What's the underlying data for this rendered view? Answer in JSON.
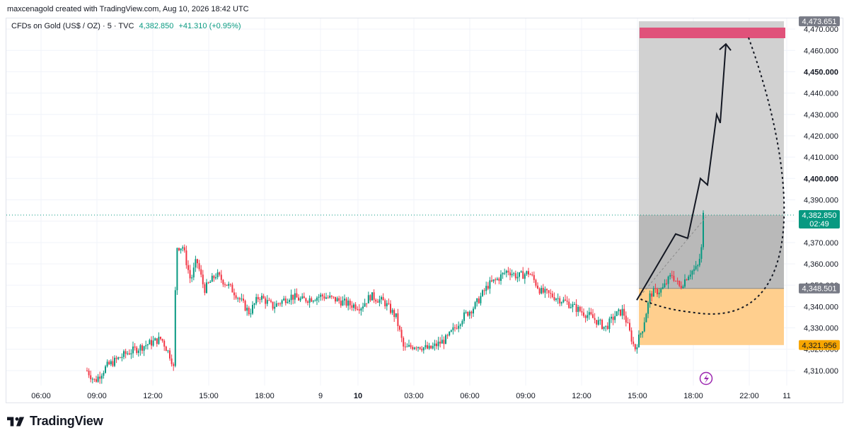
{
  "credit": "maxcenagold created with TradingView.com, Aug 10, 2026 18:42 UTC",
  "legend": {
    "symbol": "CFDs on Gold (US$ / OZ) · 5 · TVC",
    "last": "4,382.850",
    "change": "+41.310 (+0.95%)"
  },
  "branding": {
    "name": "TradingView"
  },
  "colors": {
    "up": "#089981",
    "down": "#f23645",
    "target": "#e0527a",
    "profit_zone": "#d1d1d1",
    "stop_zone": "#ffcf8e",
    "tag_gray": "#787b86",
    "tag_orange": "#f7a600",
    "tag_green": "#089981"
  },
  "chart_data": {
    "type": "candlestick",
    "symbol": "CFDs on Gold (US$ / OZ)",
    "timeframe": "5",
    "x_ticks": [
      "06:00",
      "09:00",
      "12:00",
      "15:00",
      "18:00",
      "9",
      "10",
      "03:00",
      "06:00",
      "09:00",
      "12:00",
      "15:00",
      "18:00",
      "22:00",
      "11"
    ],
    "bold_x_ticks": [
      "10"
    ],
    "y_ticks": [
      4310,
      4320,
      4330,
      4340,
      4350,
      4360,
      4370,
      4380,
      4390,
      4400,
      4410,
      4420,
      4430,
      4440,
      4450,
      4460,
      4470
    ],
    "y_tick_labels": [
      "4,310.000",
      "4,320.000",
      "4,330.000",
      "4,340.000",
      "4,350.000",
      "4,360.000",
      "4,370.000",
      "4,380.000",
      "4,390.000",
      "4,400.000",
      "4,410.000",
      "4,420.000",
      "4,430.000",
      "4,440.000",
      "4,450.000",
      "4,460.000",
      "4,470.000"
    ],
    "bold_y_ticks": [
      "4,400.000",
      "4,450.000"
    ],
    "ylim": [
      4303,
      4475
    ],
    "price_path": [
      [
        0.0,
        4310
      ],
      [
        0.4,
        4305
      ],
      [
        1.0,
        4312
      ],
      [
        2.0,
        4318
      ],
      [
        3.0,
        4322
      ],
      [
        3.8,
        4325
      ],
      [
        4.3,
        4316
      ],
      [
        4.45,
        4310
      ],
      [
        4.55,
        4368
      ],
      [
        4.9,
        4368
      ],
      [
        5.3,
        4352
      ],
      [
        5.6,
        4362
      ],
      [
        6.0,
        4348
      ],
      [
        6.6,
        4355
      ],
      [
        7.2,
        4350
      ],
      [
        7.6,
        4346
      ],
      [
        8.3,
        4337
      ],
      [
        8.8,
        4345
      ],
      [
        9.5,
        4340
      ],
      [
        10.4,
        4345
      ],
      [
        11.0,
        4343
      ],
      [
        12.0,
        4345
      ],
      [
        12.8,
        4343
      ],
      [
        13.4,
        4341
      ],
      [
        14.0,
        4340
      ],
      [
        14.5,
        4345
      ],
      [
        15.2,
        4342
      ],
      [
        15.8,
        4335
      ],
      [
        16.2,
        4320
      ],
      [
        16.8,
        4322
      ],
      [
        17.5,
        4320
      ],
      [
        18.4,
        4325
      ],
      [
        19.2,
        4335
      ],
      [
        19.8,
        4340
      ],
      [
        20.5,
        4350
      ],
      [
        21.0,
        4353
      ],
      [
        21.5,
        4357
      ],
      [
        22.0,
        4354
      ],
      [
        22.6,
        4356
      ],
      [
        23.2,
        4347
      ],
      [
        23.8,
        4345
      ],
      [
        24.5,
        4342
      ],
      [
        25.2,
        4338
      ],
      [
        25.8,
        4335
      ],
      [
        26.5,
        4330
      ],
      [
        27.0,
        4336
      ],
      [
        27.4,
        4338
      ],
      [
        28.0,
        4320
      ],
      [
        28.4,
        4330
      ],
      [
        28.8,
        4346
      ],
      [
        29.4,
        4348
      ],
      [
        29.9,
        4355
      ],
      [
        30.3,
        4349
      ],
      [
        30.8,
        4356
      ],
      [
        31.2,
        4358
      ],
      [
        31.4,
        4366
      ],
      [
        31.5,
        4382.85
      ]
    ],
    "last_price": 4382.85,
    "countdown": "02:49",
    "long_position": {
      "target": 4473.651,
      "entry": 4348.501,
      "stop": 4321.956,
      "target_label": "4,473.651",
      "entry_label": "4,348.501",
      "stop_label": "4,321.956",
      "last_label": "4,382.850"
    },
    "annotations": [
      {
        "kind": "zigzag-arrow",
        "description_points": [
          [
            4345
          ],
          [
            4374
          ],
          [
            4373
          ],
          [
            4400
          ],
          [
            4397
          ],
          [
            4430
          ],
          [
            4426
          ],
          [
            4463
          ]
        ]
      },
      {
        "kind": "dotted-curve"
      },
      {
        "kind": "lightning-icon"
      }
    ]
  }
}
